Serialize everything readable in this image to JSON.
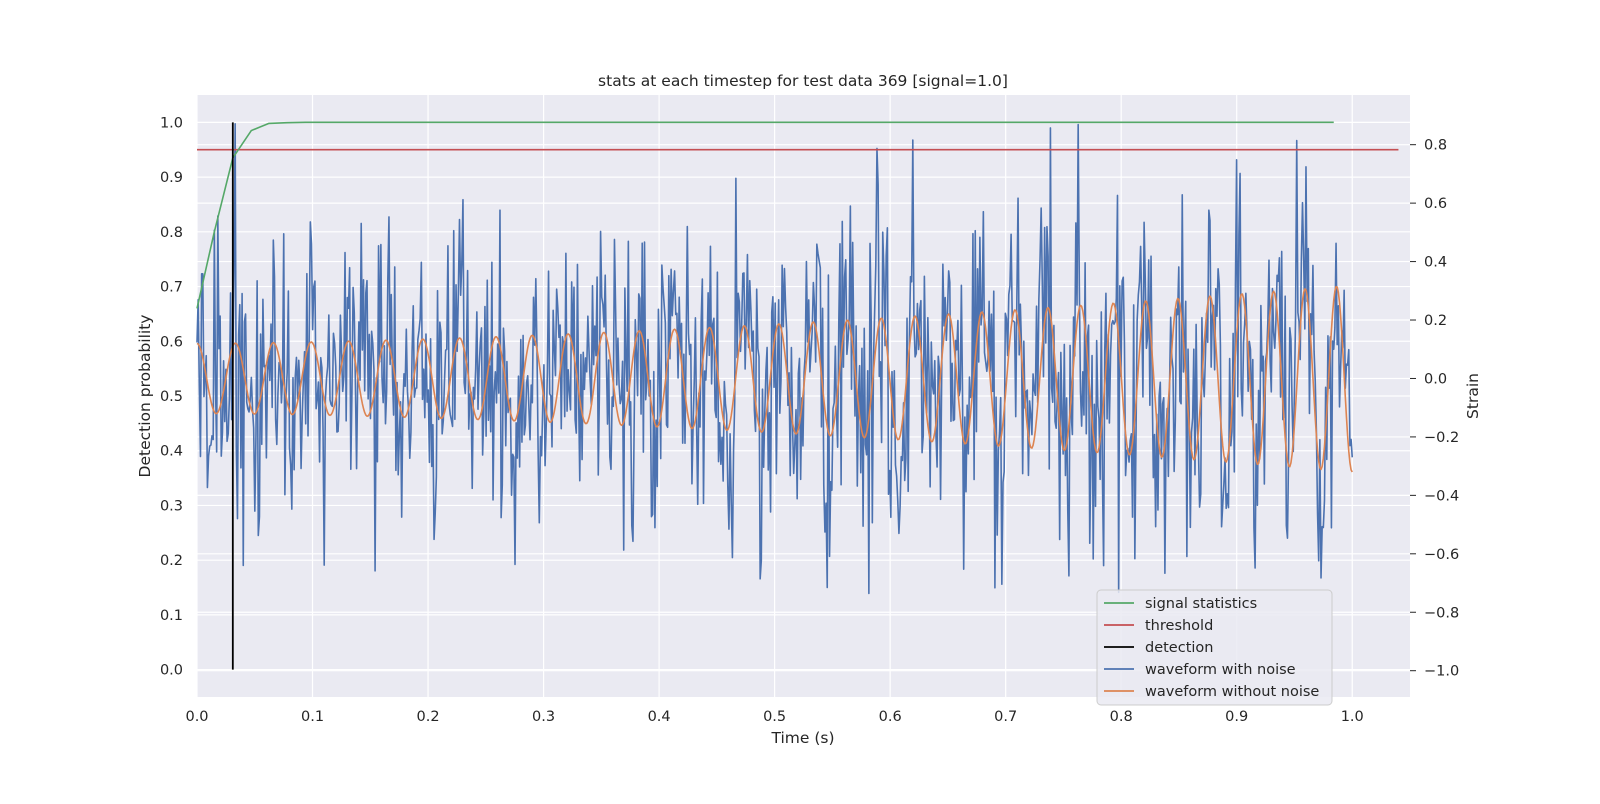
{
  "chart_data": {
    "type": "line",
    "title": "stats at each timestep for test data 369 [signal=1.0]",
    "xlabel": "Time (s)",
    "ylabel_left": "Detection probability",
    "ylabel_right": "Strain",
    "xlim": [
      0.0,
      1.05
    ],
    "ylim_left": [
      -0.05,
      1.05
    ],
    "ylim_right": [
      -1.09,
      0.97
    ],
    "x_ticks": [
      "0.0",
      "0.1",
      "0.2",
      "0.3",
      "0.4",
      "0.5",
      "0.6",
      "0.7",
      "0.8",
      "0.9",
      "1.0"
    ],
    "y_ticks_left": [
      "0.0",
      "0.1",
      "0.2",
      "0.3",
      "0.4",
      "0.5",
      "0.6",
      "0.7",
      "0.8",
      "0.9",
      "1.0"
    ],
    "y_ticks_right": [
      "−1.0",
      "−0.8",
      "−0.6",
      "−0.4",
      "−0.2",
      "0.0",
      "0.2",
      "0.4",
      "0.6",
      "0.8"
    ],
    "grid": true,
    "legend_position": "lower-right",
    "series": [
      {
        "name": "signal statistics",
        "axis": "left",
        "color": "#55a868",
        "x": [
          0.0,
          0.015,
          0.031,
          0.047,
          0.062,
          0.078,
          0.094,
          0.2,
          0.4,
          0.6,
          0.8,
          0.984
        ],
        "y": [
          0.66,
          0.8,
          0.935,
          0.985,
          0.998,
          0.9995,
          1.0,
          1.0,
          1.0,
          1.0,
          1.0,
          1.0
        ]
      },
      {
        "name": "threshold",
        "axis": "left",
        "color": "#c44e52",
        "x": [
          0.0,
          1.04
        ],
        "y": [
          0.95,
          0.95
        ]
      },
      {
        "name": "detection",
        "axis": "left",
        "color": "#000000",
        "x": [
          0.031,
          0.031
        ],
        "y": [
          0.0,
          1.0
        ]
      },
      {
        "name": "waveform with noise",
        "axis": "right",
        "color": "#4c72b0",
        "sample_count": 1000,
        "x_range": [
          0.0,
          1.0
        ],
        "noise_std": 0.26,
        "y_range": [
          -0.8,
          0.88
        ]
      },
      {
        "name": "waveform without noise",
        "axis": "right",
        "color": "#dd8452",
        "x_range": [
          0.0,
          1.0
        ],
        "amp_start": 0.12,
        "amp_end": 0.32,
        "freq_start_hz": 30,
        "freq_end_hz": 37
      }
    ]
  }
}
